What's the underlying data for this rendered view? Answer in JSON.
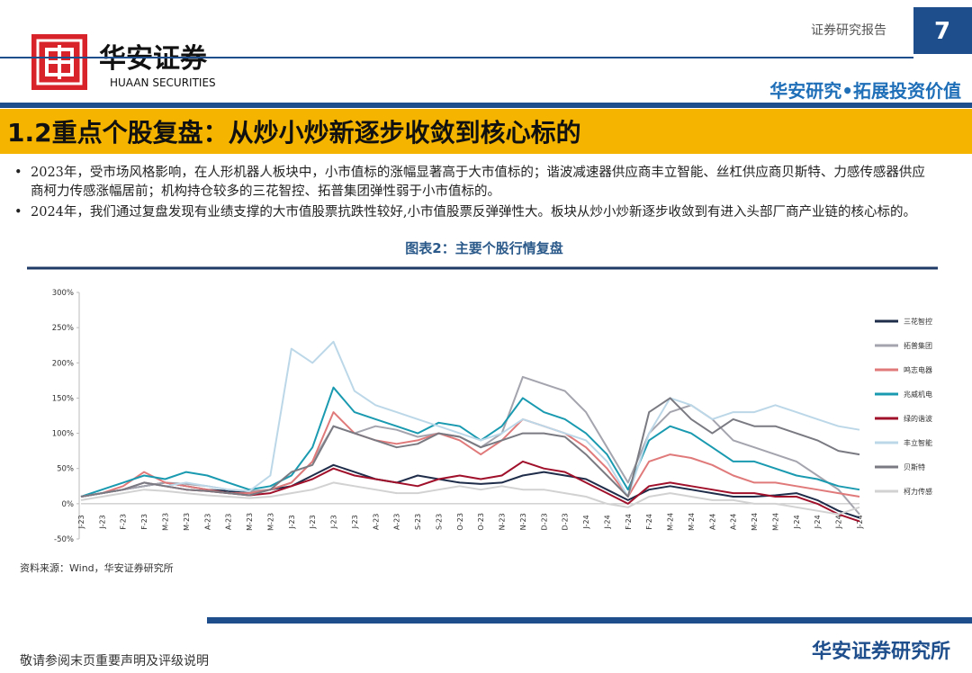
{
  "header": {
    "logo_cn": "华安证券",
    "logo_en": "HUAAN SECURITIES",
    "report_type": "证券研究报告",
    "page_number": "7",
    "slogan": "华安研究•拓展投资价值"
  },
  "title": "1.2重点个股复盘：从炒小炒新逐步收敛到核心标的",
  "bullets": [
    "2023年，受市场风格影响，在人形机器人板块中，小市值标的涨幅显著高于大市值标的；谐波减速器供应商丰立智能、丝杠供应商贝斯特、力感传感器供应商柯力传感涨幅居前；机构持仓较多的三花智控、拓普集团弹性弱于小市值标的。",
    "2024年，我们通过复盘发现有业绩支撑的大市值股票抗跌性较好,小市值股票反弹弹性大。板块从炒小炒新逐步收敛到有进入头部厂商产业链的核心标的。"
  ],
  "chart_data": {
    "type": "line",
    "title": "图表2：主要个股行情复盘",
    "categories": [
      "J-23",
      "J-23",
      "F-23",
      "F-23",
      "M-23",
      "M-23",
      "A-23",
      "A-23",
      "M-23",
      "M-23",
      "J-23",
      "J-23",
      "J-23",
      "J-23",
      "A-23",
      "A-23",
      "S-23",
      "S-23",
      "O-23",
      "O-23",
      "N-23",
      "N-23",
      "D-23",
      "D-23",
      "J-24",
      "J-24",
      "F-24",
      "F-24",
      "M-24",
      "M-24",
      "A-24",
      "A-24",
      "M-24",
      "M-24",
      "J-24",
      "J-24",
      "J-24",
      "J-24"
    ],
    "ylim": [
      -50,
      300
    ],
    "yticks": [
      {
        "value": -50,
        "label": "-50%"
      },
      {
        "value": 0,
        "label": "0%"
      },
      {
        "value": 50,
        "label": "50%"
      },
      {
        "value": 100,
        "label": "100%"
      },
      {
        "value": 150,
        "label": "150%"
      },
      {
        "value": 200,
        "label": "200%"
      },
      {
        "value": 250,
        "label": "250%"
      },
      {
        "value": 300,
        "label": "300%"
      }
    ],
    "legend": "right",
    "series": [
      {
        "name": "三花智控",
        "color": "#1f2d4a",
        "values": [
          10,
          15,
          20,
          25,
          30,
          25,
          20,
          18,
          15,
          20,
          25,
          40,
          55,
          45,
          35,
          30,
          40,
          35,
          30,
          28,
          30,
          40,
          45,
          40,
          35,
          20,
          5,
          20,
          25,
          20,
          15,
          10,
          10,
          12,
          15,
          5,
          -10,
          -20
        ]
      },
      {
        "name": "拓普集团",
        "color": "#a4a4ae",
        "values": [
          10,
          15,
          20,
          25,
          30,
          28,
          25,
          20,
          18,
          20,
          30,
          60,
          110,
          100,
          110,
          105,
          95,
          100,
          95,
          80,
          100,
          180,
          170,
          160,
          130,
          80,
          30,
          100,
          130,
          140,
          120,
          90,
          80,
          70,
          60,
          40,
          20,
          -15
        ]
      },
      {
        "name": "鸣志电器",
        "color": "#e07a7a",
        "values": [
          10,
          15,
          25,
          45,
          30,
          25,
          20,
          15,
          15,
          20,
          30,
          60,
          130,
          100,
          90,
          85,
          90,
          100,
          90,
          70,
          90,
          120,
          110,
          100,
          80,
          50,
          10,
          60,
          70,
          65,
          55,
          40,
          30,
          30,
          25,
          20,
          15,
          10
        ]
      },
      {
        "name": "兆威机电",
        "color": "#1a9ab0",
        "values": [
          10,
          20,
          30,
          40,
          35,
          45,
          40,
          30,
          20,
          25,
          40,
          80,
          165,
          130,
          120,
          110,
          100,
          115,
          110,
          90,
          110,
          150,
          130,
          120,
          100,
          70,
          20,
          90,
          110,
          100,
          80,
          60,
          60,
          50,
          40,
          35,
          25,
          20
        ]
      },
      {
        "name": "绿的谐波",
        "color": "#a0102a",
        "values": [
          10,
          15,
          20,
          30,
          25,
          20,
          18,
          15,
          12,
          15,
          25,
          35,
          50,
          40,
          35,
          30,
          25,
          35,
          40,
          35,
          40,
          60,
          50,
          45,
          30,
          15,
          0,
          25,
          30,
          25,
          20,
          15,
          15,
          10,
          10,
          0,
          -15,
          -25
        ]
      },
      {
        "name": "丰立智能",
        "color": "#bcd8e8",
        "values": [
          10,
          15,
          20,
          30,
          25,
          30,
          25,
          20,
          18,
          40,
          220,
          200,
          230,
          160,
          140,
          130,
          120,
          110,
          100,
          90,
          100,
          120,
          110,
          100,
          90,
          60,
          10,
          100,
          150,
          140,
          120,
          130,
          130,
          140,
          130,
          120,
          110,
          105
        ]
      },
      {
        "name": "贝斯特",
        "color": "#7a7a82",
        "values": [
          10,
          15,
          20,
          30,
          25,
          20,
          18,
          15,
          12,
          20,
          45,
          55,
          110,
          100,
          90,
          80,
          85,
          100,
          95,
          80,
          90,
          100,
          100,
          95,
          70,
          40,
          10,
          130,
          150,
          120,
          100,
          120,
          110,
          110,
          100,
          90,
          75,
          70
        ]
      },
      {
        "name": "柯力传感",
        "color": "#d2d2d2",
        "values": [
          5,
          10,
          15,
          20,
          18,
          15,
          12,
          10,
          8,
          10,
          15,
          20,
          30,
          25,
          20,
          15,
          15,
          20,
          25,
          20,
          25,
          20,
          20,
          15,
          10,
          0,
          -5,
          10,
          15,
          10,
          5,
          5,
          0,
          0,
          -5,
          -10,
          -15,
          -5
        ]
      }
    ]
  },
  "source": "资料来源：Wind，华安证券研究所",
  "footer": {
    "disclaimer": "敬请参阅末页重要声明及评级说明",
    "institute": "华安证券研究所"
  }
}
